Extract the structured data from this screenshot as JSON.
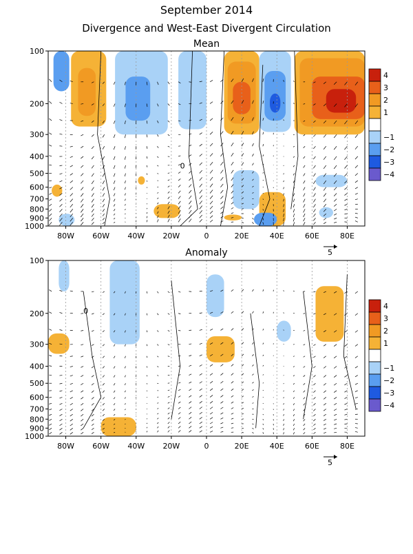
{
  "title": "September 2014",
  "subtitle": "Divergence and West-East Divergent Circulation",
  "colors": {
    "neg4": "#6a5acd",
    "neg3": "#1e5ae0",
    "neg2": "#5a9ef0",
    "neg1": "#a9d2f7",
    "pos1": "#f5b236",
    "pos2": "#f19a23",
    "pos3": "#e8601a",
    "pos4": "#c8200c",
    "contour": "#000000",
    "grid": "#999999"
  },
  "ref_vector_label": "5",
  "chart_data": [
    {
      "type": "heatmap",
      "panel": "Mean",
      "title": "Mean",
      "x_ticks": [
        "80W",
        "60W",
        "40W",
        "20W",
        "0",
        "20E",
        "40E",
        "60E",
        "80E"
      ],
      "x_tick_values": [
        -80,
        -60,
        -40,
        -20,
        0,
        20,
        40,
        60,
        80
      ],
      "xlim": [
        -90,
        90
      ],
      "y_ticks": [
        "100",
        "200",
        "300",
        "400",
        "500",
        "600",
        "700",
        "800",
        "900",
        "1000"
      ],
      "y_tick_values": [
        100,
        200,
        300,
        400,
        500,
        600,
        700,
        800,
        900,
        1000
      ],
      "ylim": [
        100,
        1000
      ],
      "y_scale": "log",
      "colorbar": {
        "levels": [
          -4,
          -3,
          -2,
          -1,
          1,
          2,
          3,
          4
        ],
        "labels": [
          "4",
          "3",
          "2",
          "1",
          "−1",
          "−2",
          "−3",
          "−4"
        ]
      },
      "shaded_regions": [
        {
          "lon": [
            -87,
            -78
          ],
          "p": [
            100,
            170
          ],
          "value": -2
        },
        {
          "lon": [
            -77,
            -57
          ],
          "p": [
            100,
            270
          ],
          "value": 1
        },
        {
          "lon": [
            -73,
            -63
          ],
          "p": [
            125,
            235
          ],
          "value": 2
        },
        {
          "lon": [
            -52,
            -22
          ],
          "p": [
            100,
            300
          ],
          "value": -1
        },
        {
          "lon": [
            -46,
            -32
          ],
          "p": [
            140,
            250
          ],
          "value": -2
        },
        {
          "lon": [
            -16,
            0
          ],
          "p": [
            100,
            280
          ],
          "value": -1
        },
        {
          "lon": [
            10,
            30
          ],
          "p": [
            100,
            300
          ],
          "value": 1
        },
        {
          "lon": [
            12,
            28
          ],
          "p": [
            115,
            260
          ],
          "value": 2
        },
        {
          "lon": [
            15,
            25
          ],
          "p": [
            150,
            230
          ],
          "value": 3
        },
        {
          "lon": [
            30,
            48
          ],
          "p": [
            100,
            290
          ],
          "value": -1
        },
        {
          "lon": [
            33,
            45
          ],
          "p": [
            130,
            250
          ],
          "value": -2
        },
        {
          "lon": [
            36,
            42
          ],
          "p": [
            175,
            225
          ],
          "value": -3
        },
        {
          "lon": [
            50,
            90
          ],
          "p": [
            100,
            300
          ],
          "value": 1
        },
        {
          "lon": [
            53,
            90
          ],
          "p": [
            110,
            270
          ],
          "value": 2
        },
        {
          "lon": [
            60,
            90
          ],
          "p": [
            140,
            245
          ],
          "value": 3
        },
        {
          "lon": [
            68,
            85
          ],
          "p": [
            165,
            225
          ],
          "value": 4
        },
        {
          "lon": [
            -88,
            -82
          ],
          "p": [
            580,
            680
          ],
          "value": 1
        },
        {
          "lon": [
            -39,
            -35
          ],
          "p": [
            520,
            580
          ],
          "value": 1
        },
        {
          "lon": [
            -30,
            -15
          ],
          "p": [
            750,
            900
          ],
          "value": 1
        },
        {
          "lon": [
            10,
            20
          ],
          "p": [
            860,
            930
          ],
          "value": 1
        },
        {
          "lon": [
            30,
            45
          ],
          "p": [
            640,
            1000
          ],
          "value": 1
        },
        {
          "lon": [
            -84,
            -75
          ],
          "p": [
            850,
            1000
          ],
          "value": -1
        },
        {
          "lon": [
            15,
            30
          ],
          "p": [
            480,
            800
          ],
          "value": -1
        },
        {
          "lon": [
            27,
            40
          ],
          "p": [
            840,
            1000
          ],
          "value": -2
        },
        {
          "lon": [
            62,
            80
          ],
          "p": [
            510,
            600
          ],
          "value": -1
        },
        {
          "lon": [
            64,
            72
          ],
          "p": [
            780,
            900
          ],
          "value": -1
        }
      ],
      "contour_labels": [
        "0"
      ]
    },
    {
      "type": "heatmap",
      "panel": "Anomaly",
      "title": "Anomaly",
      "x_ticks": [
        "80W",
        "60W",
        "40W",
        "20W",
        "0",
        "20E",
        "40E",
        "60E",
        "80E"
      ],
      "x_tick_values": [
        -80,
        -60,
        -40,
        -20,
        0,
        20,
        40,
        60,
        80
      ],
      "xlim": [
        -90,
        90
      ],
      "y_ticks": [
        "100",
        "200",
        "300",
        "400",
        "500",
        "600",
        "700",
        "800",
        "900",
        "1000"
      ],
      "y_tick_values": [
        100,
        200,
        300,
        400,
        500,
        600,
        700,
        800,
        900,
        1000
      ],
      "ylim": [
        100,
        1000
      ],
      "y_scale": "log",
      "colorbar": {
        "levels": [
          -4,
          -3,
          -2,
          -1,
          1,
          2,
          3,
          4
        ],
        "labels": [
          "4",
          "3",
          "2",
          "1",
          "−1",
          "−2",
          "−3",
          "−4"
        ]
      },
      "shaded_regions": [
        {
          "lon": [
            -84,
            -78
          ],
          "p": [
            100,
            150
          ],
          "value": -1
        },
        {
          "lon": [
            -55,
            -38
          ],
          "p": [
            100,
            300
          ],
          "value": -1
        },
        {
          "lon": [
            0,
            10
          ],
          "p": [
            120,
            210
          ],
          "value": -1
        },
        {
          "lon": [
            -90,
            -78
          ],
          "p": [
            260,
            340
          ],
          "value": 1
        },
        {
          "lon": [
            0,
            16
          ],
          "p": [
            270,
            380
          ],
          "value": 1
        },
        {
          "lon": [
            62,
            78
          ],
          "p": [
            140,
            290
          ],
          "value": 1
        },
        {
          "lon": [
            40,
            48
          ],
          "p": [
            220,
            290
          ],
          "value": -1
        },
        {
          "lon": [
            -60,
            -40
          ],
          "p": [
            780,
            1000
          ],
          "value": 1
        }
      ],
      "contour_labels": [
        "0"
      ]
    }
  ]
}
